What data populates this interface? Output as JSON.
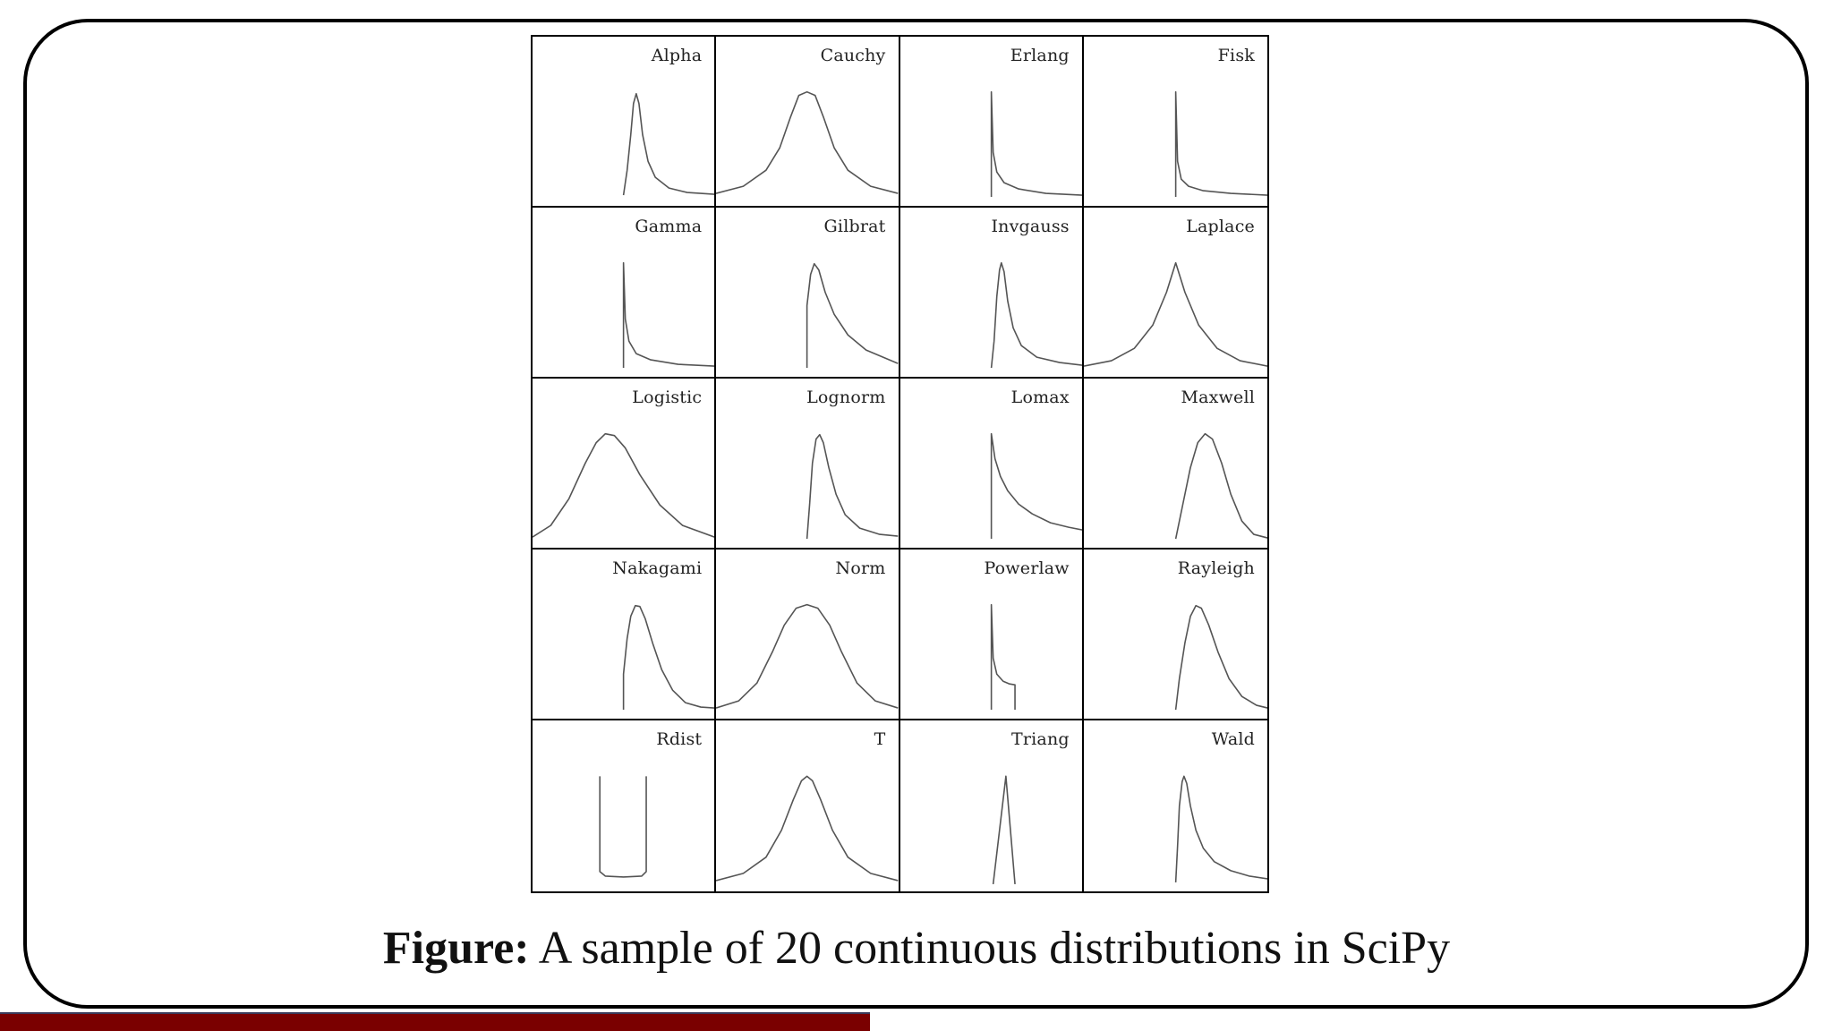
{
  "figure": {
    "caption_label": "Figure:",
    "caption_text": " A sample of 20 continuous distributions in SciPy",
    "panels": [
      {
        "title": "Alpha"
      },
      {
        "title": "Cauchy"
      },
      {
        "title": "Erlang"
      },
      {
        "title": "Fisk"
      },
      {
        "title": "Gamma"
      },
      {
        "title": "Gilbrat"
      },
      {
        "title": "Invgauss"
      },
      {
        "title": "Laplace"
      },
      {
        "title": "Logistic"
      },
      {
        "title": "Lognorm"
      },
      {
        "title": "Lomax"
      },
      {
        "title": "Maxwell"
      },
      {
        "title": "Nakagami"
      },
      {
        "title": "Norm"
      },
      {
        "title": "Powerlaw"
      },
      {
        "title": "Rayleigh"
      },
      {
        "title": "Rdist"
      },
      {
        "title": "T"
      },
      {
        "title": "Triang"
      },
      {
        "title": "Wald"
      }
    ]
  },
  "colors": {
    "curve": "#555555",
    "frame": "#000000",
    "bottom_bar": "#7a0000"
  }
}
